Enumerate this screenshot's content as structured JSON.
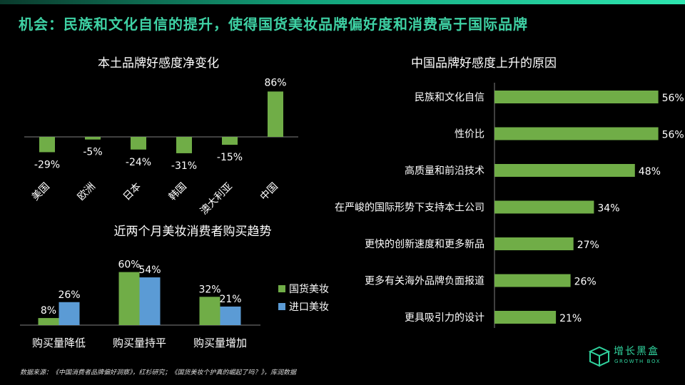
{
  "title": "机会：民族和文化自信的提升，使得国货美妆品牌偏好度和消费高于国际品牌",
  "source": "数据来源：《中国消费者品牌偏好洞察》，红杉研究；《国货美妆个护真的崛起了吗？》，库润数据",
  "logo": {
    "name": "增长黑盒",
    "sub": "GROWTH BOX",
    "icon": "box-logo-icon"
  },
  "colors": {
    "green": "#70ad47",
    "blue": "#5b9bd5",
    "accent": "#3ed1a4"
  },
  "chart_data": [
    {
      "type": "bar",
      "title": "本土品牌好感度净变化",
      "categories": [
        "美国",
        "欧洲",
        "日本",
        "韩国",
        "澳大利亚",
        "中国"
      ],
      "values": [
        -29,
        -5,
        -24,
        -31,
        -15,
        86
      ],
      "value_labels": [
        "-29%",
        "-5%",
        "-24%",
        "-31%",
        "-15%",
        "86%"
      ],
      "ylim": [
        -31,
        86
      ],
      "grid": false
    },
    {
      "type": "bar",
      "title": "近两个月美妆消费者购买趋势",
      "categories": [
        "购买量降低",
        "购买量持平",
        "购买量增加"
      ],
      "series": [
        {
          "name": "国货美妆",
          "values": [
            8,
            60,
            32
          ],
          "labels": [
            "8%",
            "60%",
            "32%"
          ],
          "color": "#70ad47"
        },
        {
          "name": "进口美妆",
          "values": [
            26,
            54,
            21
          ],
          "labels": [
            "26%",
            "54%",
            "21%"
          ],
          "color": "#5b9bd5"
        }
      ],
      "ylim": [
        0,
        60
      ],
      "legend": "right",
      "grid": false
    },
    {
      "type": "bar",
      "orientation": "horizontal",
      "title": "中国品牌好感度上升的原因",
      "categories": [
        "民族和文化自信",
        "性价比",
        "高质量和前沿技术",
        "在严峻的国际形势下支持本土公司",
        "更快的创新速度和更多新品",
        "更多有关海外品牌负面报道",
        "更具吸引力的设计"
      ],
      "values": [
        56,
        56,
        48,
        34,
        27,
        26,
        21
      ],
      "value_labels": [
        "56%",
        "56%",
        "48%",
        "34%",
        "27%",
        "26%",
        "21%"
      ],
      "xlim": [
        0,
        56
      ],
      "grid": false
    }
  ]
}
